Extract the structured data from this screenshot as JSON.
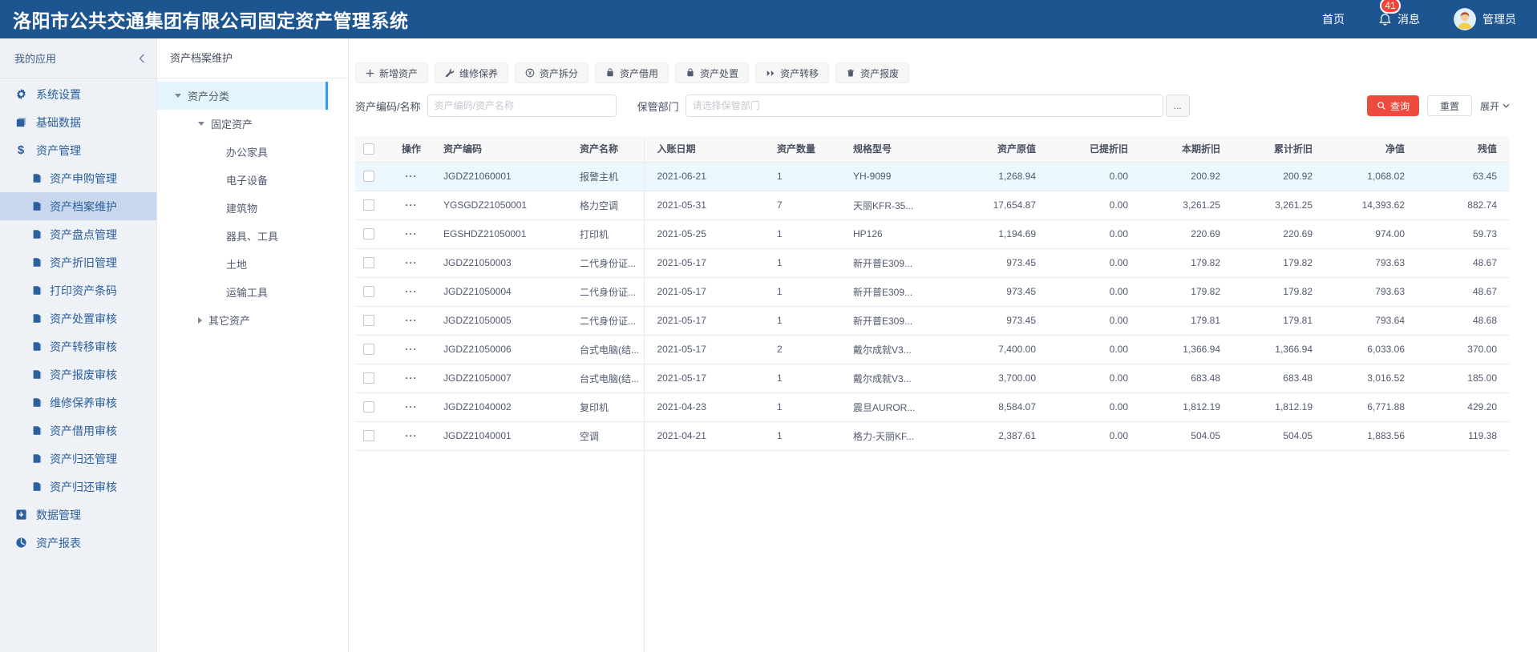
{
  "header": {
    "title": "洛阳市公共交通集团有限公司固定资产管理系统",
    "home": "首页",
    "messages": "消息",
    "badge": "41",
    "user": "管理员"
  },
  "sidebar": {
    "title": "我的应用",
    "items": [
      {
        "key": "system-settings",
        "label": "系统设置",
        "icon": "gear",
        "level": 1
      },
      {
        "key": "base-data",
        "label": "基础数据",
        "icon": "book",
        "level": 1
      },
      {
        "key": "asset-management",
        "label": "资产管理",
        "icon": "dollar",
        "level": 1
      },
      {
        "key": "asset-purchase",
        "label": "资产申购管理",
        "icon": "doc",
        "level": 2
      },
      {
        "key": "asset-archive",
        "label": "资产档案维护",
        "icon": "doc",
        "level": 2,
        "selected": true
      },
      {
        "key": "asset-inventory",
        "label": "资产盘点管理",
        "icon": "doc",
        "level": 2
      },
      {
        "key": "asset-depreciation",
        "label": "资产折旧管理",
        "icon": "doc",
        "level": 2
      },
      {
        "key": "print-barcode",
        "label": "打印资产条码",
        "icon": "doc",
        "level": 2
      },
      {
        "key": "disposal-audit",
        "label": "资产处置审核",
        "icon": "doc",
        "level": 2
      },
      {
        "key": "transfer-audit",
        "label": "资产转移审核",
        "icon": "doc",
        "level": 2
      },
      {
        "key": "scrap-audit",
        "label": "资产报废审核",
        "icon": "doc",
        "level": 2
      },
      {
        "key": "maintenance-audit",
        "label": "维修保养审核",
        "icon": "doc",
        "level": 2
      },
      {
        "key": "borrow-audit",
        "label": "资产借用审核",
        "icon": "doc",
        "level": 2
      },
      {
        "key": "return-management",
        "label": "资产归还管理",
        "icon": "doc",
        "level": 2
      },
      {
        "key": "return-audit",
        "label": "资产归还审核",
        "icon": "doc",
        "level": 2
      },
      {
        "key": "data-management",
        "label": "数据管理",
        "icon": "data",
        "level": 1
      },
      {
        "key": "asset-reports",
        "label": "资产报表",
        "icon": "report",
        "level": 1
      }
    ]
  },
  "tree": {
    "title": "资产档案维护",
    "nodes": [
      {
        "key": "asset-category",
        "label": "资产分类",
        "level": 1,
        "caret": "down",
        "selected": true
      },
      {
        "key": "fixed-assets",
        "label": "固定资产",
        "level": 2,
        "caret": "down"
      },
      {
        "key": "office-furniture",
        "label": "办公家具",
        "level": 3,
        "caret": "none"
      },
      {
        "key": "electronic-equipment",
        "label": "电子设备",
        "level": 3,
        "caret": "none"
      },
      {
        "key": "buildings",
        "label": "建筑物",
        "level": 3,
        "caret": "none"
      },
      {
        "key": "tools",
        "label": "器具、工具",
        "level": 3,
        "caret": "none"
      },
      {
        "key": "land",
        "label": "土地",
        "level": 3,
        "caret": "none"
      },
      {
        "key": "transport",
        "label": "运输工具",
        "level": 3,
        "caret": "none"
      },
      {
        "key": "other-assets",
        "label": "其它资产",
        "level": 2,
        "caret": "right"
      }
    ]
  },
  "toolbar": {
    "buttons": [
      {
        "key": "add-asset",
        "label": "新增资产",
        "icon": "plus"
      },
      {
        "key": "maintenance",
        "label": "维修保养",
        "icon": "wrench"
      },
      {
        "key": "asset-split",
        "label": "资产拆分",
        "icon": "coin"
      },
      {
        "key": "asset-borrow",
        "label": "资产借用",
        "icon": "bag"
      },
      {
        "key": "asset-disposal",
        "label": "资产处置",
        "icon": "bag"
      },
      {
        "key": "asset-transfer",
        "label": "资产转移",
        "icon": "forward"
      },
      {
        "key": "asset-scrap",
        "label": "资产报废",
        "icon": "trash"
      }
    ]
  },
  "search": {
    "code_label": "资产编码/名称",
    "code_placeholder": "资产编码/资产名称",
    "dept_label": "保管部门",
    "dept_placeholder": "请选择保管部门",
    "more": "...",
    "query": "查询",
    "reset": "重置",
    "expand": "展开"
  },
  "table": {
    "action_glyph": "···",
    "columns": [
      "操作",
      "资产编码",
      "资产名称",
      "入账日期",
      "资产数量",
      "规格型号",
      "资产原值",
      "已提折旧",
      "本期折旧",
      "累计折旧",
      "净值",
      "残值"
    ],
    "rows": [
      {
        "selected": true,
        "code": "JGDZ21060001",
        "name": "报警主机",
        "date": "2021-06-21",
        "qty": "1",
        "spec": "YH-9099",
        "orig": "1,268.94",
        "taken": "0.00",
        "period": "200.92",
        "acc": "200.92",
        "net": "1,068.02",
        "salvage": "63.45"
      },
      {
        "code": "YGSGDZ21050001",
        "name": "格力空调",
        "date": "2021-05-31",
        "qty": "7",
        "spec": "天丽KFR-35...",
        "orig": "17,654.87",
        "taken": "0.00",
        "period": "3,261.25",
        "acc": "3,261.25",
        "net": "14,393.62",
        "salvage": "882.74"
      },
      {
        "code": "EGSHDZ21050001",
        "name": "打印机",
        "date": "2021-05-25",
        "qty": "1",
        "spec": "HP126",
        "orig": "1,194.69",
        "taken": "0.00",
        "period": "220.69",
        "acc": "220.69",
        "net": "974.00",
        "salvage": "59.73"
      },
      {
        "code": "JGDZ21050003",
        "name": "二代身份证...",
        "date": "2021-05-17",
        "qty": "1",
        "spec": "新开普E309...",
        "orig": "973.45",
        "taken": "0.00",
        "period": "179.82",
        "acc": "179.82",
        "net": "793.63",
        "salvage": "48.67"
      },
      {
        "code": "JGDZ21050004",
        "name": "二代身份证...",
        "date": "2021-05-17",
        "qty": "1",
        "spec": "新开普E309...",
        "orig": "973.45",
        "taken": "0.00",
        "period": "179.82",
        "acc": "179.82",
        "net": "793.63",
        "salvage": "48.67"
      },
      {
        "code": "JGDZ21050005",
        "name": "二代身份证...",
        "date": "2021-05-17",
        "qty": "1",
        "spec": "新开普E309...",
        "orig": "973.45",
        "taken": "0.00",
        "period": "179.81",
        "acc": "179.81",
        "net": "793.64",
        "salvage": "48.68"
      },
      {
        "code": "JGDZ21050006",
        "name": "台式电脑(结...",
        "date": "2021-05-17",
        "qty": "2",
        "spec": "戴尔成就V3...",
        "orig": "7,400.00",
        "taken": "0.00",
        "period": "1,366.94",
        "acc": "1,366.94",
        "net": "6,033.06",
        "salvage": "370.00"
      },
      {
        "code": "JGDZ21050007",
        "name": "台式电脑(结...",
        "date": "2021-05-17",
        "qty": "1",
        "spec": "戴尔成就V3...",
        "orig": "3,700.00",
        "taken": "0.00",
        "period": "683.48",
        "acc": "683.48",
        "net": "3,016.52",
        "salvage": "185.00"
      },
      {
        "code": "JGDZ21040002",
        "name": "复印机",
        "date": "2021-04-23",
        "qty": "1",
        "spec": "震旦AUROR...",
        "orig": "8,584.07",
        "taken": "0.00",
        "period": "1,812.19",
        "acc": "1,812.19",
        "net": "6,771.88",
        "salvage": "429.20"
      },
      {
        "code": "JGDZ21040001",
        "name": "空调",
        "date": "2021-04-21",
        "qty": "1",
        "spec": "格力-天丽KF...",
        "orig": "2,387.61",
        "taken": "0.00",
        "period": "504.05",
        "acc": "504.05",
        "net": "1,883.56",
        "salvage": "119.38"
      }
    ]
  }
}
